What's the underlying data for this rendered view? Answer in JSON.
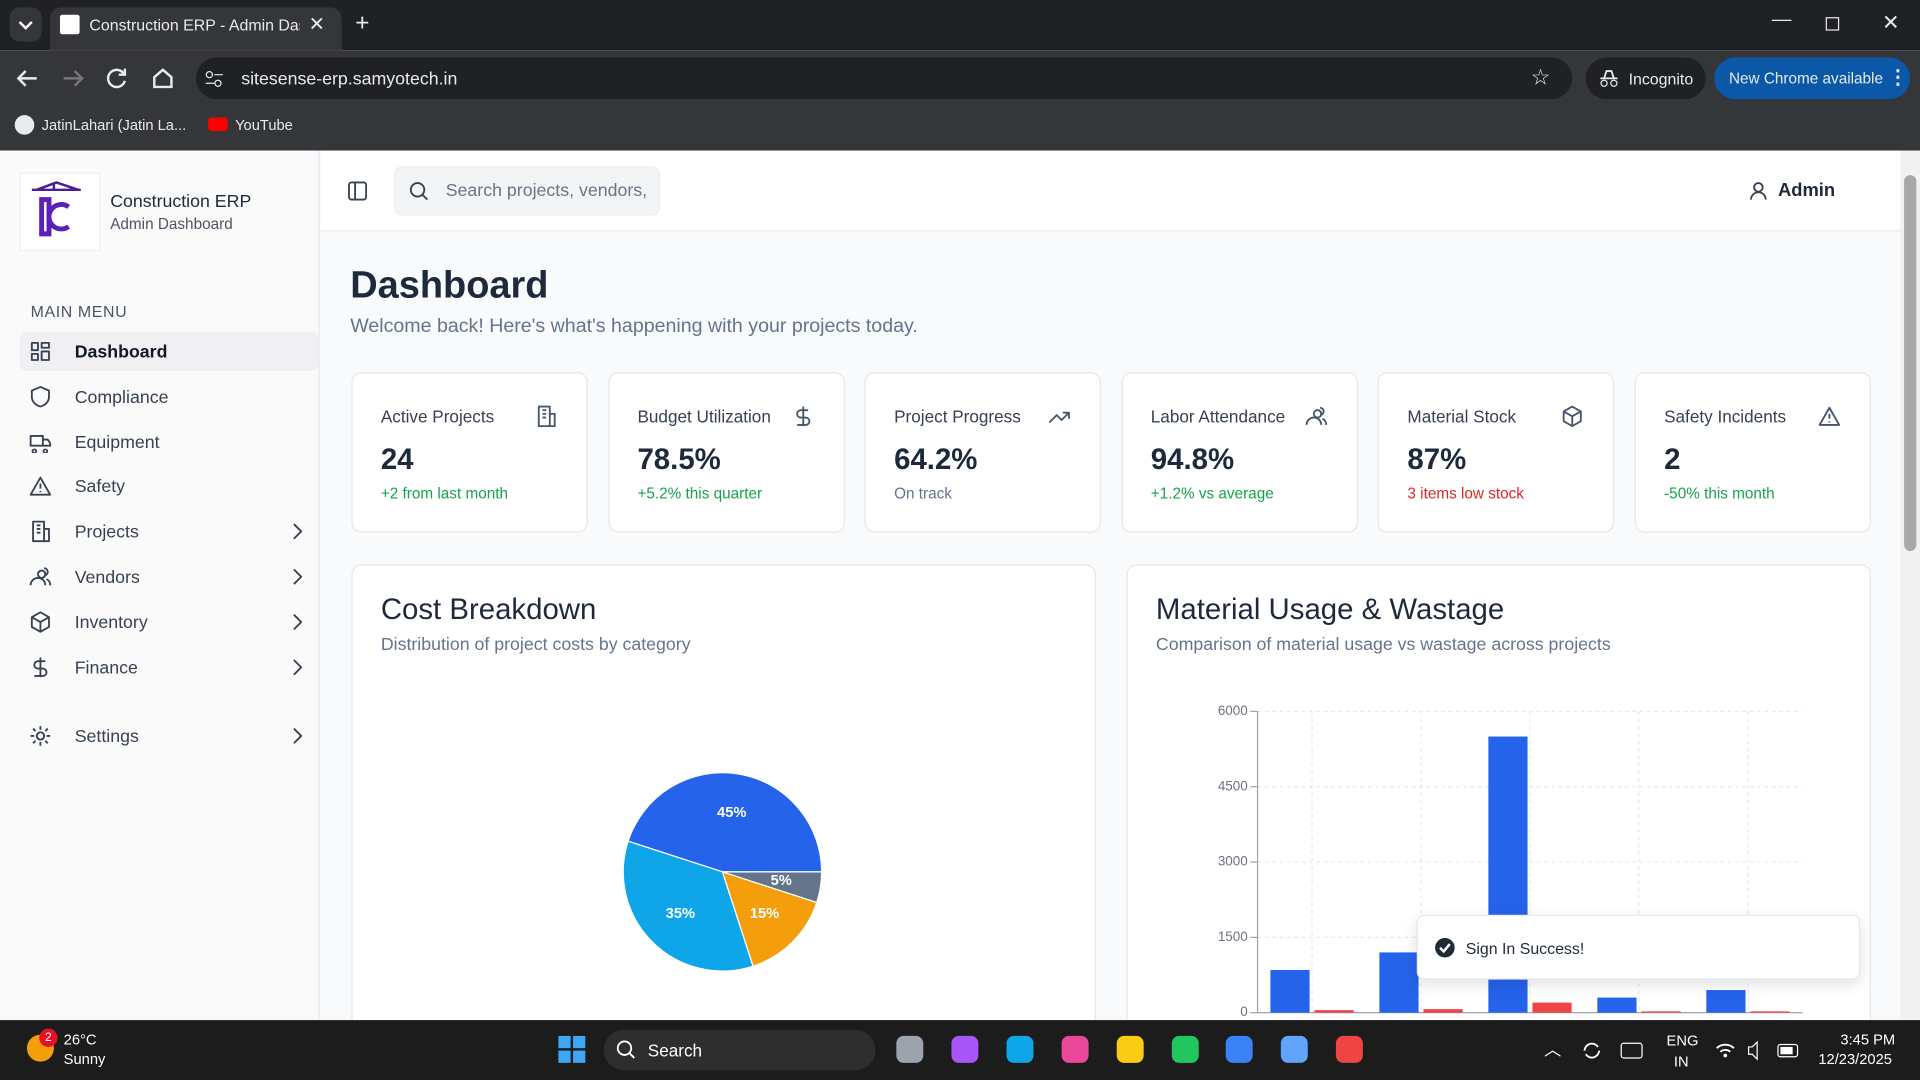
{
  "browser": {
    "tab_title": "Construction ERP - Admin Dash",
    "url": "sitesense-erp.samyotech.in",
    "profile": "Incognito",
    "update_button": "New Chrome available",
    "bookmarks": [
      "JatinLahari (Jatin La...",
      "YouTube"
    ]
  },
  "sidebar": {
    "brand_title": "Construction ERP",
    "brand_subtitle": "Admin Dashboard",
    "menu_heading": "MAIN MENU",
    "items": [
      "Dashboard",
      "Compliance",
      "Equipment",
      "Safety",
      "Projects",
      "Vendors",
      "Inventory",
      "Finance"
    ],
    "footer_items": [
      "Settings"
    ]
  },
  "header": {
    "search_placeholder": "Search projects, vendors, ",
    "user": "Admin"
  },
  "page": {
    "title": "Dashboard",
    "subtitle": "Welcome back! Here's what's happening with your projects today."
  },
  "stats": [
    {
      "label": "Active Projects",
      "value": "24",
      "note": "+2 from last month",
      "note_color": "#16a34a"
    },
    {
      "label": "Budget Utilization",
      "value": "78.5%",
      "note": "+5.2% this quarter",
      "note_color": "#16a34a"
    },
    {
      "label": "Project Progress",
      "value": "64.2%",
      "note": "On track",
      "note_color": "#64748b"
    },
    {
      "label": "Labor Attendance",
      "value": "94.8%",
      "note": "+1.2% vs average",
      "note_color": "#16a34a"
    },
    {
      "label": "Material Stock",
      "value": "87%",
      "note": "3 items low stock",
      "note_color": "#dc2626"
    },
    {
      "label": "Safety Incidents",
      "value": "2",
      "note": "-50% this month",
      "note_color": "#16a34a"
    }
  ],
  "chart_data": [
    {
      "type": "pie",
      "title": "Cost Breakdown",
      "subtitle": "Distribution of project costs by category",
      "values": [
        45,
        35,
        15,
        5
      ],
      "value_labels": [
        "45%",
        "35%",
        "15%",
        "5%"
      ],
      "colors": [
        "#2563eb",
        "#0ea5e9",
        "#f59e0b",
        "#64748b"
      ]
    },
    {
      "type": "bar",
      "title": "Material Usage & Wastage",
      "subtitle": "Comparison of material usage vs wastage across projects",
      "series": [
        {
          "color": "#2563eb",
          "values": [
            850,
            1200,
            5500,
            300,
            450
          ]
        },
        {
          "color": "#ef4444",
          "values": [
            50,
            70,
            200,
            25,
            25
          ]
        }
      ],
      "ylim": [
        0,
        6000
      ],
      "yticks": [
        0,
        1500,
        3000,
        4500,
        6000
      ],
      "grid": true
    }
  ],
  "toast": {
    "message": "Sign In Success!"
  },
  "taskbar": {
    "notification_count": "2",
    "temperature": "26°C",
    "condition": "Sunny",
    "search": "Search",
    "language": "ENG",
    "region": "IN",
    "time": "3:45 PM",
    "date": "12/23/2025"
  }
}
